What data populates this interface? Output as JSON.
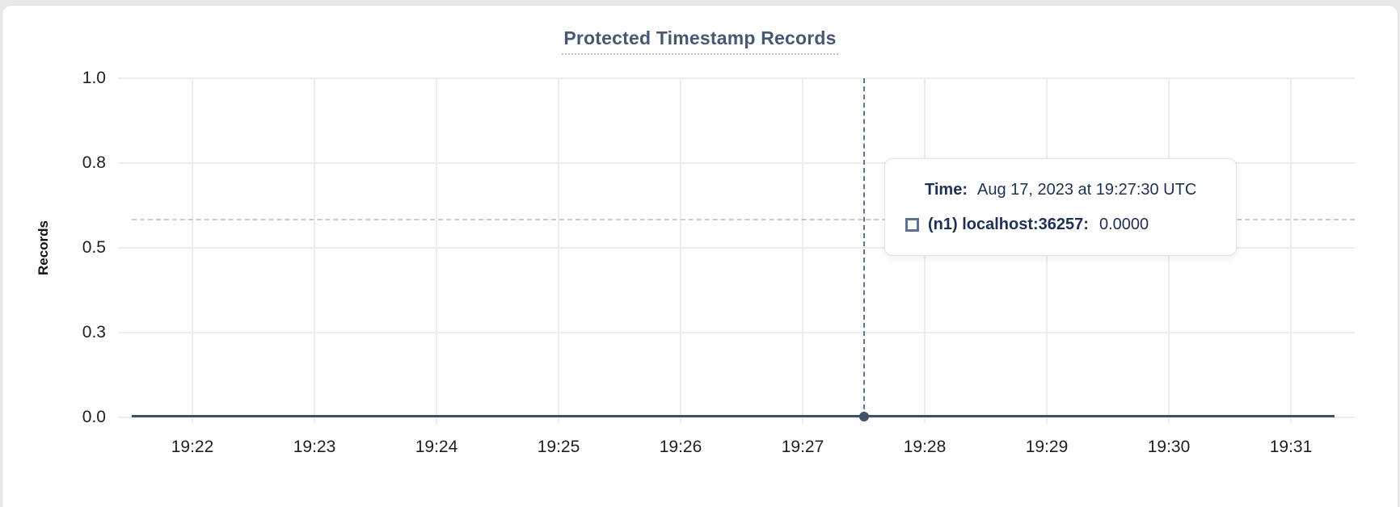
{
  "chart": {
    "title": "Protected Timestamp Records",
    "ylabel": "Records",
    "x_ticks": [
      "19:22",
      "19:23",
      "19:24",
      "19:25",
      "19:26",
      "19:27",
      "19:28",
      "19:29",
      "19:30",
      "19:31"
    ],
    "y_ticks": [
      "1.0",
      "0.8",
      "0.5",
      "0.3",
      "0.0"
    ]
  },
  "tooltip": {
    "time_label": "Time:",
    "time_value": "Aug 17, 2023 at 19:27:30 UTC",
    "series_label": "(n1) localhost:36257:",
    "series_value": "0.0000",
    "swatch_icon": "square-outline-icon"
  },
  "chart_data": {
    "type": "line",
    "title": "Protected Timestamp Records",
    "xlabel": "",
    "ylabel": "Records",
    "x_ticks": [
      "19:22",
      "19:23",
      "19:24",
      "19:25",
      "19:26",
      "19:27",
      "19:28",
      "19:29",
      "19:30",
      "19:31"
    ],
    "y_tick_labels": [
      "1.0",
      "0.8",
      "0.5",
      "0.3",
      "0.0"
    ],
    "y_tick_values": [
      1.0,
      0.75,
      0.5,
      0.25,
      0.0
    ],
    "ylim": [
      0,
      1.0
    ],
    "grid": true,
    "legend_position": "none",
    "series": [
      {
        "name": "(n1) localhost:36257",
        "constant_value": 0.0,
        "x_range": [
          "19:21:26",
          "19:31:21"
        ],
        "color": "#3f5069"
      }
    ],
    "hover_point": {
      "time": "19:27:30",
      "time_full": "Aug 17, 2023 at 19:27:30 UTC",
      "series": "(n1) localhost:36257",
      "value": 0.0,
      "value_display": "0.0000"
    }
  },
  "colors": {
    "page_bg": "#e8e8e8",
    "card_bg": "#ffffff",
    "title": "#475872",
    "title_underline": "#b4bfd0",
    "gridline": "#ededed",
    "tick_text": "#1f1f1f",
    "series_line": "#3f5069",
    "crosshair_vertical": "#5f7390",
    "crosshair_horizontal": "#c7ccd4",
    "tooltip_text": "#1d3156",
    "swatch_border": "#5f7090"
  }
}
